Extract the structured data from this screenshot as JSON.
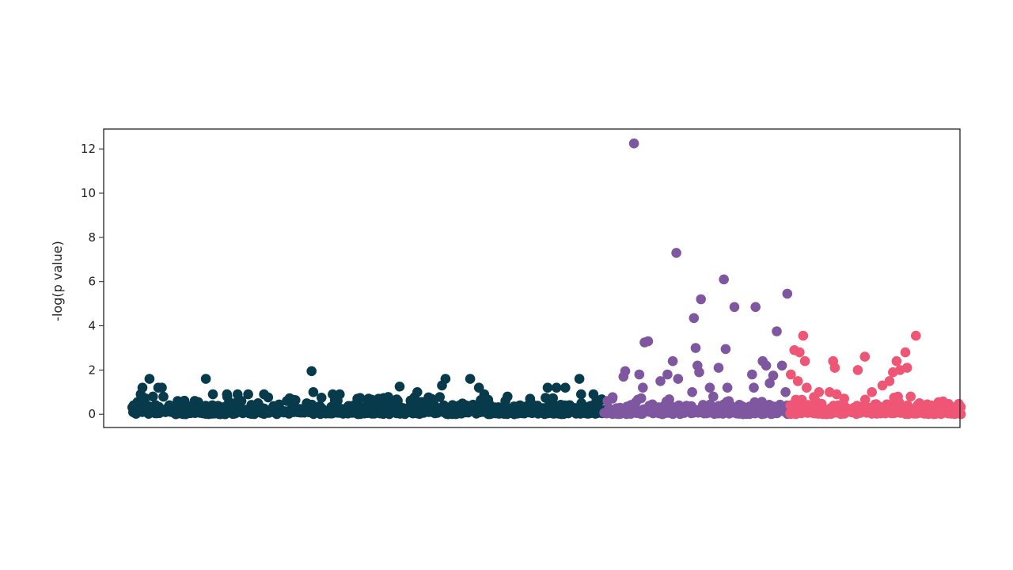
{
  "chart_data": {
    "type": "scatter",
    "title": "",
    "xlabel": "",
    "ylabel": "-log(p value)",
    "ylim": [
      -0.6,
      12.9
    ],
    "yticks": [
      0,
      2,
      4,
      6,
      8,
      10,
      12
    ],
    "ytick_labels": [
      "0",
      "2",
      "4",
      "6",
      "8",
      "10",
      "12"
    ],
    "xticks_visible": false,
    "grid": false,
    "legend": "none",
    "xlim": [
      -80,
      2350
    ],
    "series": [
      {
        "color": "#073b4c",
        "x_range": [
          0,
          1340
        ],
        "highlight_points": [
          {
            "x": 5,
            "y": 0.4
          },
          {
            "x": 25,
            "y": 0.9
          },
          {
            "x": 30,
            "y": 1.2
          },
          {
            "x": 50,
            "y": 1.6
          },
          {
            "x": 60,
            "y": 0.8
          },
          {
            "x": 75,
            "y": 1.2
          },
          {
            "x": 85,
            "y": 1.2
          },
          {
            "x": 130,
            "y": 0.6
          },
          {
            "x": 210,
            "y": 1.6
          },
          {
            "x": 230,
            "y": 0.9
          },
          {
            "x": 270,
            "y": 0.9
          },
          {
            "x": 300,
            "y": 0.9
          },
          {
            "x": 330,
            "y": 0.9
          },
          {
            "x": 375,
            "y": 0.9
          },
          {
            "x": 440,
            "y": 0.6
          },
          {
            "x": 510,
            "y": 1.95
          },
          {
            "x": 515,
            "y": 1.0
          },
          {
            "x": 570,
            "y": 0.9
          },
          {
            "x": 590,
            "y": 0.9
          },
          {
            "x": 640,
            "y": 0.7
          },
          {
            "x": 700,
            "y": 0.7
          },
          {
            "x": 760,
            "y": 1.25
          },
          {
            "x": 810,
            "y": 1.0
          },
          {
            "x": 880,
            "y": 1.3
          },
          {
            "x": 890,
            "y": 1.6
          },
          {
            "x": 960,
            "y": 1.6
          },
          {
            "x": 985,
            "y": 1.2
          },
          {
            "x": 1000,
            "y": 0.9
          },
          {
            "x": 1060,
            "y": 0.6
          },
          {
            "x": 1130,
            "y": 0.7
          },
          {
            "x": 1180,
            "y": 1.2
          },
          {
            "x": 1205,
            "y": 1.2
          },
          {
            "x": 1230,
            "y": 1.2
          },
          {
            "x": 1270,
            "y": 1.6
          },
          {
            "x": 1275,
            "y": 0.9
          },
          {
            "x": 1310,
            "y": 0.9
          }
        ]
      },
      {
        "color": "#7e57a0",
        "x_range": [
          1340,
          1865
        ],
        "highlight_points": [
          {
            "x": 1350,
            "y": 0.6
          },
          {
            "x": 1395,
            "y": 1.7
          },
          {
            "x": 1400,
            "y": 1.95
          },
          {
            "x": 1425,
            "y": 12.25
          },
          {
            "x": 1440,
            "y": 1.8
          },
          {
            "x": 1450,
            "y": 1.2
          },
          {
            "x": 1455,
            "y": 3.25
          },
          {
            "x": 1465,
            "y": 3.3
          },
          {
            "x": 1500,
            "y": 1.5
          },
          {
            "x": 1520,
            "y": 1.8
          },
          {
            "x": 1535,
            "y": 2.4
          },
          {
            "x": 1550,
            "y": 1.6
          },
          {
            "x": 1545,
            "y": 7.3
          },
          {
            "x": 1590,
            "y": 1.0
          },
          {
            "x": 1595,
            "y": 4.35
          },
          {
            "x": 1600,
            "y": 3.0
          },
          {
            "x": 1605,
            "y": 2.2
          },
          {
            "x": 1610,
            "y": 1.9
          },
          {
            "x": 1615,
            "y": 5.2
          },
          {
            "x": 1640,
            "y": 1.2
          },
          {
            "x": 1650,
            "y": 0.8
          },
          {
            "x": 1665,
            "y": 2.1
          },
          {
            "x": 1680,
            "y": 6.1
          },
          {
            "x": 1685,
            "y": 2.95
          },
          {
            "x": 1690,
            "y": 1.2
          },
          {
            "x": 1710,
            "y": 4.85
          },
          {
            "x": 1760,
            "y": 1.8
          },
          {
            "x": 1765,
            "y": 1.2
          },
          {
            "x": 1770,
            "y": 4.85
          },
          {
            "x": 1790,
            "y": 2.4
          },
          {
            "x": 1800,
            "y": 2.2
          },
          {
            "x": 1810,
            "y": 1.4
          },
          {
            "x": 1820,
            "y": 1.75
          },
          {
            "x": 1830,
            "y": 3.75
          },
          {
            "x": 1845,
            "y": 2.2
          },
          {
            "x": 1855,
            "y": 1.0
          },
          {
            "x": 1860,
            "y": 5.45
          }
        ]
      },
      {
        "color": "#ef5675",
        "x_range": [
          1865,
          2350
        ],
        "highlight_points": [
          {
            "x": 1870,
            "y": 1.8
          },
          {
            "x": 1880,
            "y": 2.9
          },
          {
            "x": 1890,
            "y": 1.5
          },
          {
            "x": 1895,
            "y": 2.8
          },
          {
            "x": 1905,
            "y": 3.55
          },
          {
            "x": 1910,
            "y": 2.4
          },
          {
            "x": 1915,
            "y": 1.2
          },
          {
            "x": 1950,
            "y": 1.0
          },
          {
            "x": 1980,
            "y": 1.0
          },
          {
            "x": 1990,
            "y": 2.4
          },
          {
            "x": 1995,
            "y": 2.1
          },
          {
            "x": 2000,
            "y": 0.9
          },
          {
            "x": 2060,
            "y": 2.0
          },
          {
            "x": 2080,
            "y": 2.6
          },
          {
            "x": 2100,
            "y": 1.0
          },
          {
            "x": 2130,
            "y": 1.3
          },
          {
            "x": 2150,
            "y": 1.5
          },
          {
            "x": 2160,
            "y": 1.9
          },
          {
            "x": 2170,
            "y": 2.4
          },
          {
            "x": 2180,
            "y": 2.0
          },
          {
            "x": 2195,
            "y": 2.8
          },
          {
            "x": 2200,
            "y": 2.1
          },
          {
            "x": 2210,
            "y": 0.8
          },
          {
            "x": 2225,
            "y": 3.55
          },
          {
            "x": 2235,
            "y": 0.5
          },
          {
            "x": 2245,
            "y": 0.2
          }
        ]
      }
    ]
  }
}
